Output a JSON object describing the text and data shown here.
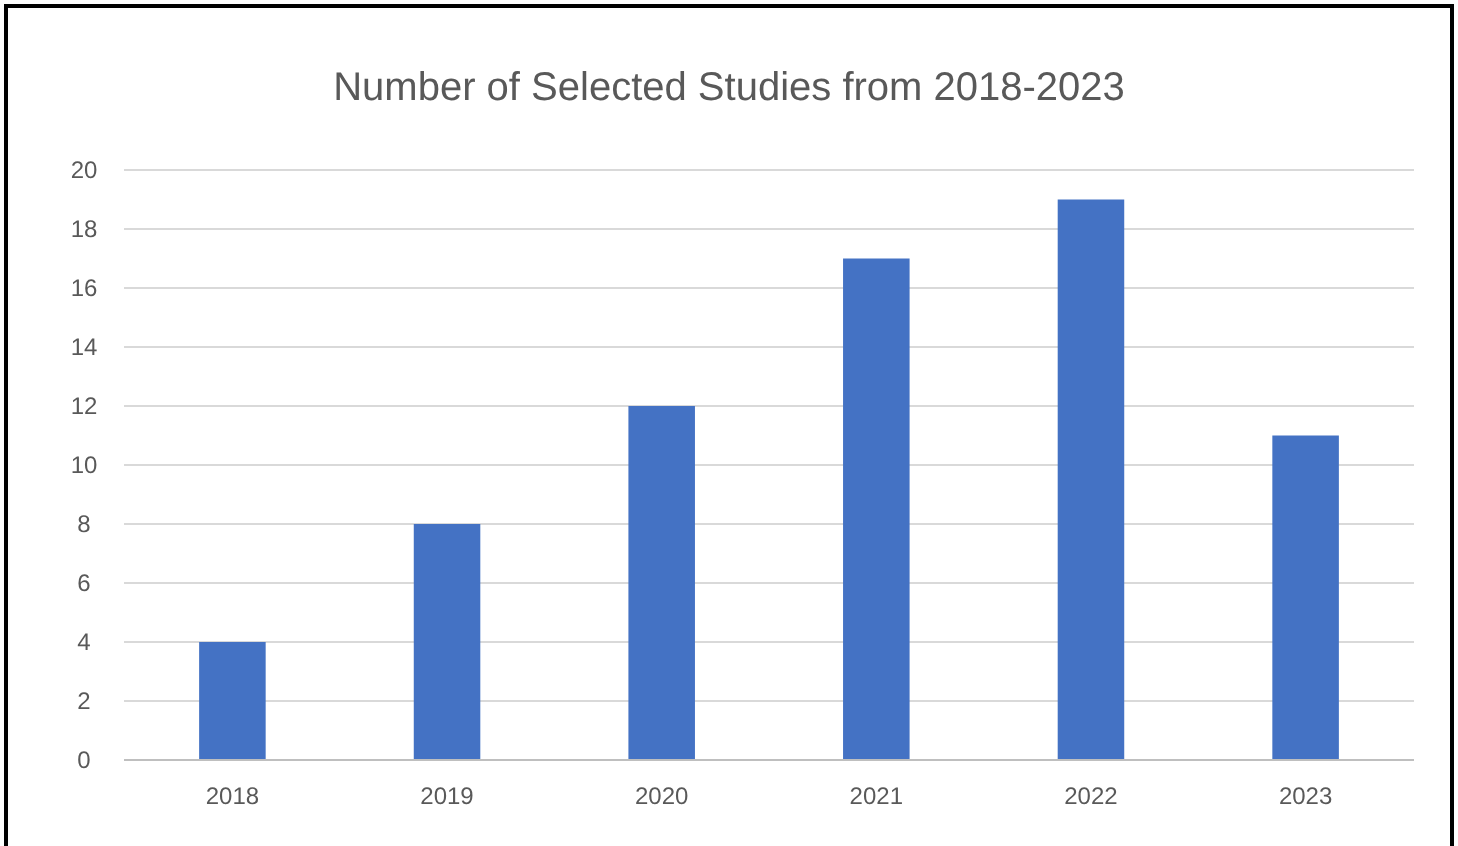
{
  "chart_data": {
    "type": "bar",
    "title": "Number of Selected Studies from 2018-2023",
    "categories": [
      "2018",
      "2019",
      "2020",
      "2021",
      "2022",
      "2023"
    ],
    "values": [
      4,
      8,
      12,
      17,
      19,
      11
    ],
    "color": "#4472c4",
    "ylim": [
      0,
      20
    ],
    "yticks": [
      0,
      2,
      4,
      6,
      8,
      10,
      12,
      14,
      16,
      18,
      20
    ],
    "grid": "y"
  }
}
